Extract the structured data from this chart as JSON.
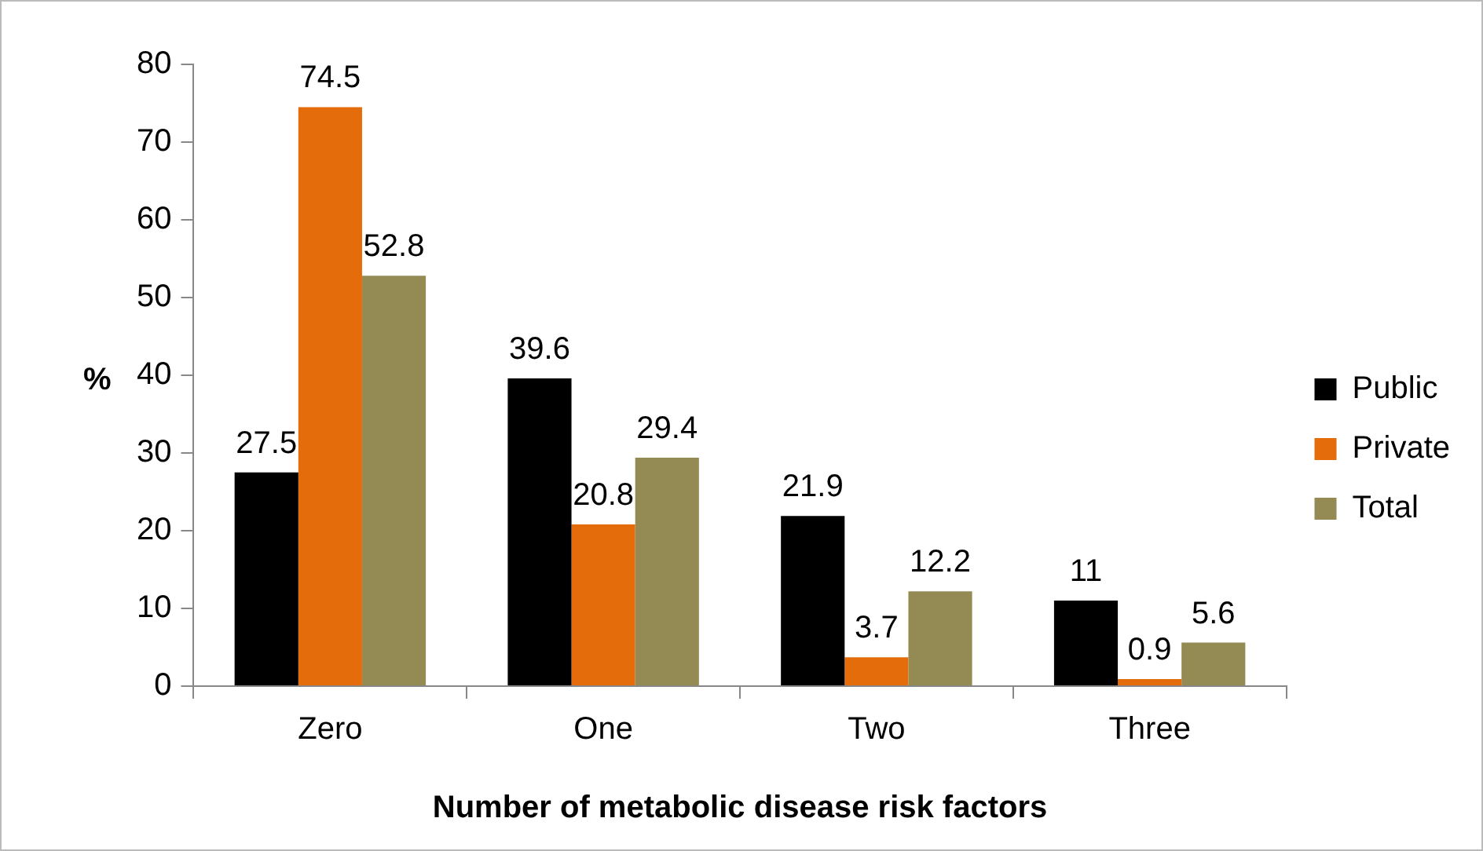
{
  "chart_data": {
    "type": "bar",
    "xlabel": "Number of metabolic disease risk factors",
    "ylabel": "%",
    "categories": [
      "Zero",
      "One",
      "Two",
      "Three"
    ],
    "series": [
      {
        "name": "Public",
        "color": "#000000",
        "values": [
          27.5,
          39.6,
          21.9,
          11
        ]
      },
      {
        "name": "Private",
        "color": "#e46c0a",
        "values": [
          74.5,
          20.8,
          3.7,
          0.9
        ]
      },
      {
        "name": "Total",
        "color": "#948a54",
        "values": [
          52.8,
          29.4,
          12.2,
          5.6
        ]
      }
    ],
    "ylim": [
      0,
      80
    ],
    "yticks": [
      0,
      10,
      20,
      30,
      40,
      50,
      60,
      70,
      80
    ],
    "grid": false,
    "legend": "right",
    "data_labels": true
  }
}
